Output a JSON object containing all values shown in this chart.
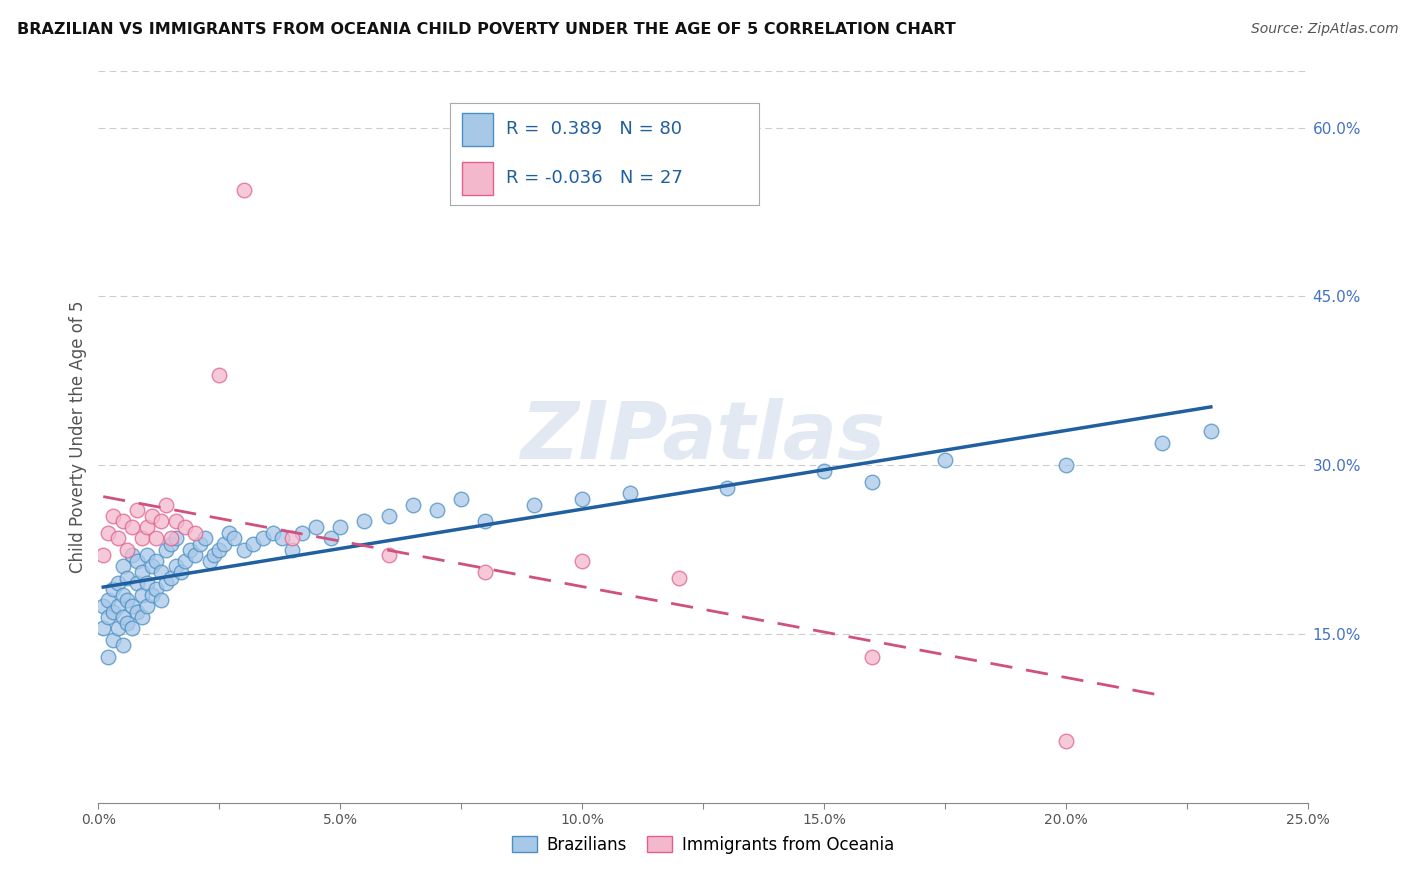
{
  "title": "BRAZILIAN VS IMMIGRANTS FROM OCEANIA CHILD POVERTY UNDER THE AGE OF 5 CORRELATION CHART",
  "source": "Source: ZipAtlas.com",
  "ylabel": "Child Poverty Under the Age of 5",
  "xlim": [
    0.0,
    0.25
  ],
  "ylim": [
    0.0,
    0.65
  ],
  "xticklabels": [
    "0.0%",
    "",
    "5.0%",
    "",
    "10.0%",
    "",
    "15.0%",
    "",
    "20.0%",
    "",
    "25.0%"
  ],
  "xtick_vals": [
    0.0,
    0.025,
    0.05,
    0.075,
    0.1,
    0.125,
    0.15,
    0.175,
    0.2,
    0.225,
    0.25
  ],
  "yticks_right": [
    0.15,
    0.3,
    0.45,
    0.6
  ],
  "yticklabels_right": [
    "15.0%",
    "30.0%",
    "45.0%",
    "60.0%"
  ],
  "blue_color": "#a8c8e8",
  "blue_edge_color": "#4a90c4",
  "pink_color": "#f4b8cc",
  "pink_edge_color": "#e06090",
  "blue_line_color": "#2060a0",
  "pink_line_color": "#d05080",
  "legend_r_blue": "0.389",
  "legend_n_blue": "80",
  "legend_r_pink": "-0.036",
  "legend_n_pink": "27",
  "legend_label_blue": "Brazilians",
  "legend_label_pink": "Immigrants from Oceania",
  "watermark": "ZIPatlas",
  "blue_scatter_x": [
    0.001,
    0.001,
    0.002,
    0.002,
    0.002,
    0.003,
    0.003,
    0.003,
    0.004,
    0.004,
    0.004,
    0.005,
    0.005,
    0.005,
    0.005,
    0.006,
    0.006,
    0.006,
    0.007,
    0.007,
    0.007,
    0.008,
    0.008,
    0.008,
    0.009,
    0.009,
    0.009,
    0.01,
    0.01,
    0.01,
    0.011,
    0.011,
    0.012,
    0.012,
    0.013,
    0.013,
    0.014,
    0.014,
    0.015,
    0.015,
    0.016,
    0.016,
    0.017,
    0.018,
    0.019,
    0.02,
    0.021,
    0.022,
    0.023,
    0.024,
    0.025,
    0.026,
    0.027,
    0.028,
    0.03,
    0.032,
    0.034,
    0.036,
    0.038,
    0.04,
    0.042,
    0.045,
    0.048,
    0.05,
    0.055,
    0.06,
    0.065,
    0.07,
    0.075,
    0.08,
    0.09,
    0.1,
    0.11,
    0.13,
    0.15,
    0.16,
    0.175,
    0.2,
    0.22,
    0.23
  ],
  "blue_scatter_y": [
    0.155,
    0.175,
    0.13,
    0.165,
    0.18,
    0.145,
    0.17,
    0.19,
    0.155,
    0.175,
    0.195,
    0.14,
    0.165,
    0.185,
    0.21,
    0.16,
    0.18,
    0.2,
    0.155,
    0.175,
    0.22,
    0.17,
    0.195,
    0.215,
    0.165,
    0.185,
    0.205,
    0.175,
    0.195,
    0.22,
    0.185,
    0.21,
    0.19,
    0.215,
    0.18,
    0.205,
    0.195,
    0.225,
    0.2,
    0.23,
    0.21,
    0.235,
    0.205,
    0.215,
    0.225,
    0.22,
    0.23,
    0.235,
    0.215,
    0.22,
    0.225,
    0.23,
    0.24,
    0.235,
    0.225,
    0.23,
    0.235,
    0.24,
    0.235,
    0.225,
    0.24,
    0.245,
    0.235,
    0.245,
    0.25,
    0.255,
    0.265,
    0.26,
    0.27,
    0.25,
    0.265,
    0.27,
    0.275,
    0.28,
    0.295,
    0.285,
    0.305,
    0.3,
    0.32,
    0.33
  ],
  "pink_scatter_x": [
    0.001,
    0.002,
    0.003,
    0.004,
    0.005,
    0.006,
    0.007,
    0.008,
    0.009,
    0.01,
    0.011,
    0.012,
    0.013,
    0.014,
    0.015,
    0.016,
    0.018,
    0.02,
    0.025,
    0.03,
    0.04,
    0.06,
    0.08,
    0.1,
    0.12,
    0.16,
    0.2
  ],
  "pink_scatter_y": [
    0.22,
    0.24,
    0.255,
    0.235,
    0.25,
    0.225,
    0.245,
    0.26,
    0.235,
    0.245,
    0.255,
    0.235,
    0.25,
    0.265,
    0.235,
    0.25,
    0.245,
    0.24,
    0.38,
    0.545,
    0.235,
    0.22,
    0.205,
    0.215,
    0.2,
    0.13,
    0.055
  ],
  "grid_color": "#cccccc",
  "spine_color": "#888888",
  "tick_color": "#555555",
  "right_tick_color": "#4472c4"
}
